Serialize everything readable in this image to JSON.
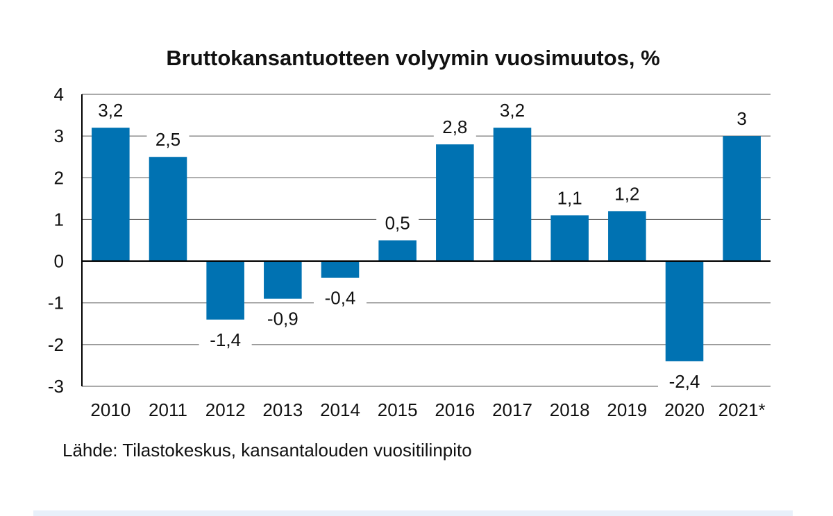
{
  "chart_data": {
    "type": "bar",
    "title": "Bruttokansantuotteen volyymin vuosimuutos, %",
    "xlabel": "",
    "ylabel": "",
    "categories": [
      "2010",
      "2011",
      "2012",
      "2013",
      "2014",
      "2015",
      "2016",
      "2017",
      "2018",
      "2019",
      "2020",
      "2021*"
    ],
    "values": [
      3.2,
      2.5,
      -1.4,
      -0.9,
      -0.4,
      0.5,
      2.8,
      3.2,
      1.1,
      1.2,
      -2.4,
      3
    ],
    "data_labels": [
      "3,2",
      "2,5",
      "-1,4",
      "-0,9",
      "-0,4",
      "0,5",
      "2,8",
      "3,2",
      "1,1",
      "1,2",
      "-2,4",
      "3"
    ],
    "ylim": [
      -3,
      4
    ],
    "yticks": [
      4,
      3,
      2,
      1,
      0,
      -1,
      -2,
      -3
    ],
    "ytick_labels": [
      "4",
      "3",
      "2",
      "1",
      "0",
      "-1",
      "-2",
      "-3"
    ],
    "grid": true,
    "bar_color": "#0072b2"
  },
  "source": "Lähde: Tilastokeskus, kansantalouden vuositilinpito"
}
